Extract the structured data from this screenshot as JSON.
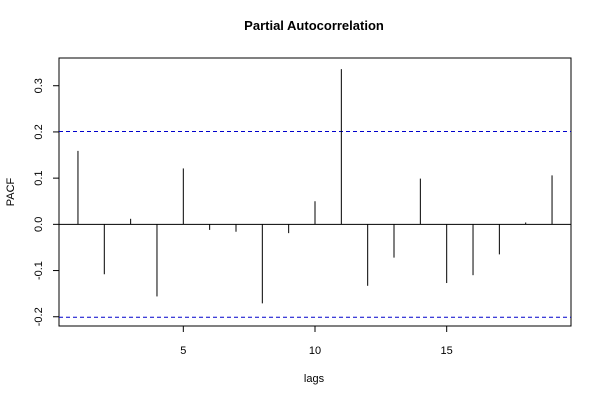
{
  "chart_data": {
    "type": "bar",
    "title": "Partial Autocorrelation",
    "xlabel": "lags",
    "ylabel": "PACF",
    "lags": [
      1,
      2,
      3,
      4,
      5,
      6,
      7,
      8,
      9,
      10,
      11,
      12,
      13,
      14,
      15,
      16,
      17,
      18,
      19
    ],
    "values": [
      0.159,
      -0.108,
      0.012,
      -0.156,
      0.121,
      -0.012,
      -0.016,
      -0.171,
      -0.019,
      0.05,
      0.336,
      -0.133,
      -0.072,
      0.099,
      -0.127,
      -0.11,
      -0.065,
      0.004,
      0.106
    ],
    "xlim": [
      0.28,
      19.72
    ],
    "ylim": [
      -0.22,
      0.36
    ],
    "xticks": [
      5,
      10,
      15
    ],
    "xtick_labels": [
      "5",
      "10",
      "15"
    ],
    "yticks": [
      -0.2,
      -0.1,
      0.0,
      0.1,
      0.2,
      0.3
    ],
    "ytick_labels": [
      "-0.2",
      "-0.1",
      "0.0",
      "0.1",
      "0.2",
      "0.3"
    ],
    "confidence_bounds": [
      0.201,
      -0.201
    ],
    "colors": {
      "bounds": "#0000cc",
      "bars": "#000000",
      "frame": "#000000"
    },
    "grid": false
  }
}
